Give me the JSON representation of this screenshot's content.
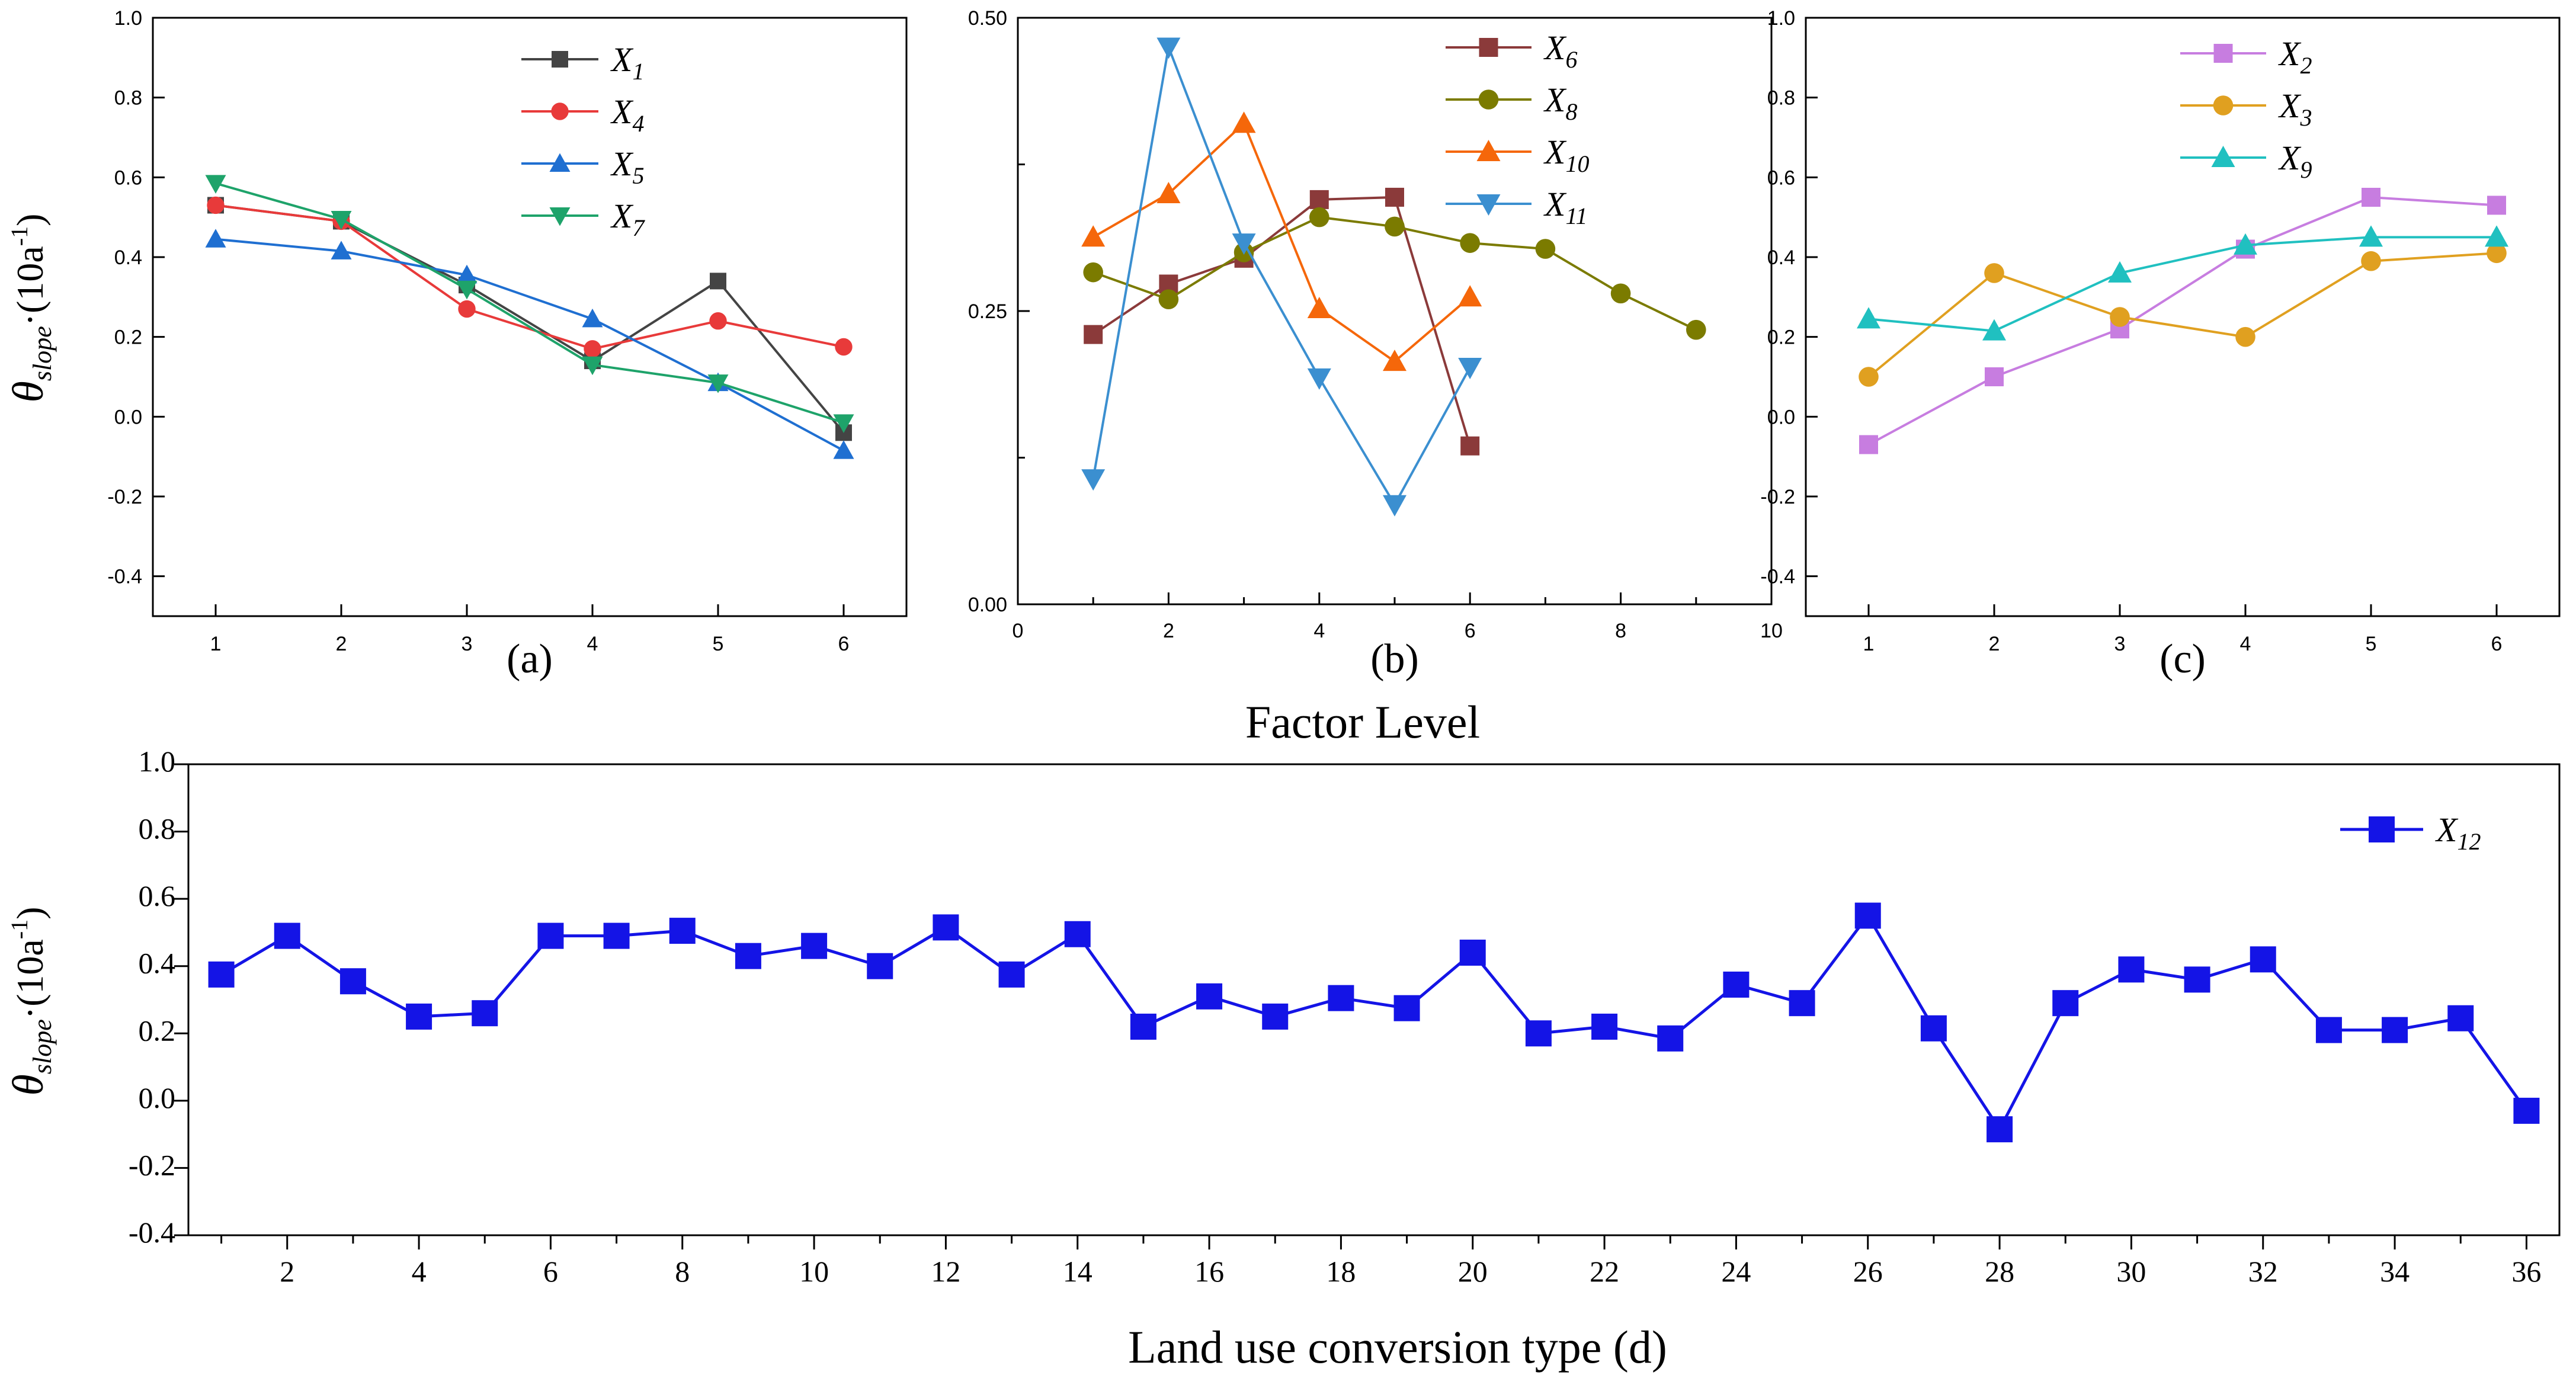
{
  "shared": {
    "factor_level_label": "Factor Level",
    "ylabel_theta": "θ",
    "ylabel_sub": "slope",
    "ylabel_rest": "·(10a",
    "ylabel_exp": "-1",
    "ylabel_close": ")"
  },
  "chart_data": [
    {
      "id": "a",
      "type": "line",
      "caption": "(a)",
      "xlim": [
        0.5,
        6.5
      ],
      "ylim": [
        -0.5,
        1.0
      ],
      "xticks": [
        1,
        2,
        3,
        4,
        5,
        6
      ],
      "yticks": [
        -0.4,
        -0.2,
        0.0,
        0.2,
        0.4,
        0.6,
        0.8,
        1.0
      ],
      "ytick_labels": [
        "-0.4",
        "-0.2",
        "0.0",
        "0.2",
        "0.4",
        "0.6",
        "0.8",
        "1.0"
      ],
      "xlabel": "",
      "ylabel": "θslope·(10a-1)",
      "legend_position": "top-center",
      "series": [
        {
          "name": "X",
          "sub": "1",
          "color": "#444444",
          "marker": "square",
          "x": [
            1,
            2,
            3,
            4,
            5,
            6
          ],
          "y": [
            0.53,
            0.49,
            0.33,
            0.14,
            0.34,
            -0.04
          ]
        },
        {
          "name": "X",
          "sub": "4",
          "color": "#e83a3a",
          "marker": "circle",
          "x": [
            1,
            2,
            3,
            4,
            5,
            6
          ],
          "y": [
            0.53,
            0.49,
            0.27,
            0.17,
            0.24,
            0.175
          ]
        },
        {
          "name": "X",
          "sub": "5",
          "color": "#1f6fd1",
          "marker": "triangle-up",
          "x": [
            1,
            2,
            3,
            4,
            5,
            6
          ],
          "y": [
            0.445,
            0.415,
            0.355,
            0.245,
            0.085,
            -0.085
          ]
        },
        {
          "name": "X",
          "sub": "7",
          "color": "#1ea36a",
          "marker": "triangle-down",
          "x": [
            1,
            2,
            3,
            4,
            5,
            6
          ],
          "y": [
            0.585,
            0.495,
            0.32,
            0.13,
            0.085,
            -0.015
          ]
        }
      ]
    },
    {
      "id": "b",
      "type": "line",
      "caption": "(b)",
      "xlim": [
        0,
        10
      ],
      "ylim": [
        0,
        0.5
      ],
      "xticks": [
        0,
        2,
        4,
        6,
        8,
        10
      ],
      "yticks": [
        0.0,
        0.25,
        0.5
      ],
      "ytick_labels": [
        "0.00",
        "0.25",
        "0.50"
      ],
      "xlabel": "",
      "ylabel": "",
      "legend_position": "top-right",
      "series": [
        {
          "name": "X",
          "sub": "6",
          "color": "#8b3a3a",
          "marker": "square",
          "x": [
            1,
            2,
            3,
            4,
            5,
            6
          ],
          "y": [
            0.23,
            0.273,
            0.295,
            0.345,
            0.347,
            0.135
          ]
        },
        {
          "name": "X",
          "sub": "8",
          "color": "#7b7b00",
          "marker": "circle",
          "x": [
            1,
            2,
            3,
            4,
            5,
            6,
            7,
            8,
            9
          ],
          "y": [
            0.283,
            0.26,
            0.3,
            0.33,
            0.322,
            0.308,
            0.303,
            0.265,
            0.234
          ]
        },
        {
          "name": "X",
          "sub": "10",
          "color": "#f5670a",
          "marker": "triangle-up",
          "x": [
            1,
            2,
            3,
            4,
            5,
            6
          ],
          "y": [
            0.313,
            0.35,
            0.41,
            0.252,
            0.207,
            0.262
          ]
        },
        {
          "name": "X",
          "sub": "11",
          "color": "#3b8fd0",
          "marker": "triangle-down",
          "x": [
            1,
            2,
            3,
            4,
            5,
            6
          ],
          "y": [
            0.107,
            0.475,
            0.308,
            0.193,
            0.085,
            0.202
          ]
        }
      ]
    },
    {
      "id": "c",
      "type": "line",
      "caption": "(c)",
      "xlim": [
        0.5,
        6.5
      ],
      "ylim": [
        -0.5,
        1.0
      ],
      "xticks": [
        1,
        2,
        3,
        4,
        5,
        6
      ],
      "yticks": [
        -0.4,
        -0.2,
        0.0,
        0.2,
        0.4,
        0.6,
        0.8,
        1.0
      ],
      "ytick_labels": [
        "-0.4",
        "-0.2",
        "0.0",
        "0.2",
        "0.4",
        "0.6",
        "0.8",
        "1.0"
      ],
      "xlabel": "",
      "ylabel": "",
      "legend_position": "top-center",
      "series": [
        {
          "name": "X",
          "sub": "2",
          "color": "#c77de0",
          "marker": "square",
          "x": [
            1,
            2,
            3,
            4,
            5,
            6
          ],
          "y": [
            -0.07,
            0.1,
            0.22,
            0.42,
            0.55,
            0.53
          ]
        },
        {
          "name": "X",
          "sub": "3",
          "color": "#e0a020",
          "marker": "circle",
          "x": [
            1,
            2,
            3,
            4,
            5,
            6
          ],
          "y": [
            0.1,
            0.36,
            0.25,
            0.2,
            0.39,
            0.41
          ]
        },
        {
          "name": "X",
          "sub": "9",
          "color": "#20c0c0",
          "marker": "triangle-up",
          "x": [
            1,
            2,
            3,
            4,
            5,
            6
          ],
          "y": [
            0.245,
            0.215,
            0.36,
            0.43,
            0.45,
            0.45
          ]
        }
      ]
    },
    {
      "id": "d",
      "type": "line",
      "caption": "Land use conversion type (d)",
      "xlim": [
        0.5,
        36.5
      ],
      "ylim": [
        -0.4,
        1.0
      ],
      "xticks": [
        2,
        4,
        6,
        8,
        10,
        12,
        14,
        16,
        18,
        20,
        22,
        24,
        26,
        28,
        30,
        32,
        34,
        36
      ],
      "yticks": [
        -0.4,
        -0.2,
        0.0,
        0.2,
        0.4,
        0.6,
        0.8,
        1.0
      ],
      "ytick_labels": [
        "-0.4",
        "-0.2",
        "0.0",
        "0.2",
        "0.4",
        "0.6",
        "0.8",
        "1.0"
      ],
      "xlabel": "Land use conversion type (d)",
      "ylabel": "θslope·(10a-1)",
      "legend_position": "top-right",
      "series": [
        {
          "name": "X",
          "sub": "12",
          "color": "#1414e6",
          "marker": "square",
          "x": [
            1,
            2,
            3,
            4,
            5,
            6,
            7,
            8,
            9,
            10,
            11,
            12,
            13,
            14,
            15,
            16,
            17,
            18,
            19,
            20,
            21,
            22,
            23,
            24,
            25,
            26,
            27,
            28,
            29,
            30,
            31,
            32,
            33,
            34,
            35,
            36
          ],
          "y": [
            0.375,
            0.49,
            0.355,
            0.25,
            0.26,
            0.49,
            0.49,
            0.505,
            0.43,
            0.46,
            0.4,
            0.515,
            0.375,
            0.495,
            0.22,
            0.31,
            0.25,
            0.305,
            0.275,
            0.44,
            0.2,
            0.22,
            0.185,
            0.345,
            0.29,
            0.55,
            0.215,
            -0.085,
            0.29,
            0.39,
            0.36,
            0.42,
            0.21,
            0.21,
            0.245,
            -0.03
          ]
        }
      ]
    }
  ]
}
